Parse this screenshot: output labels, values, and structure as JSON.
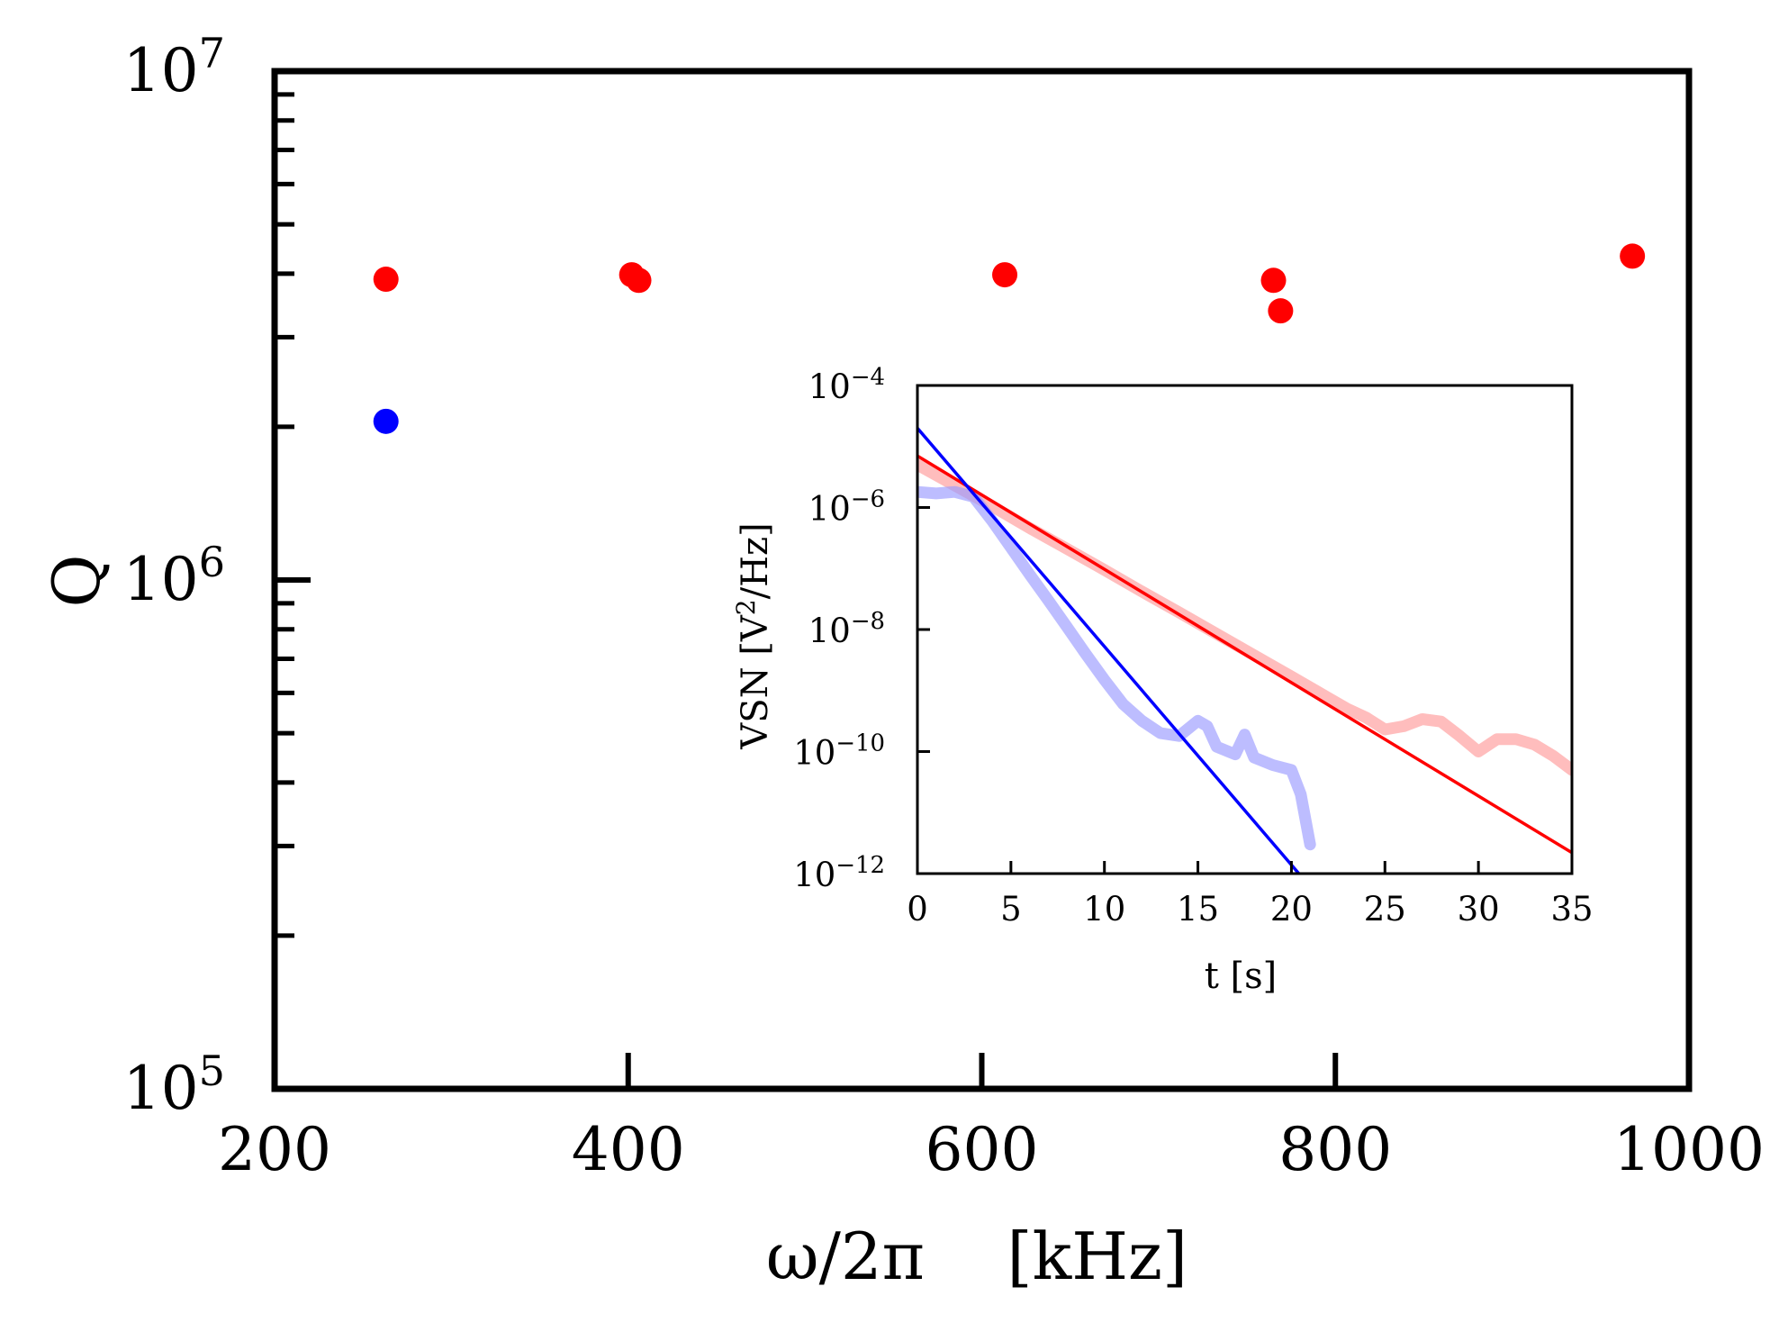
{
  "chart_data": [
    {
      "type": "scatter",
      "title": "",
      "xlabel": "ω/2π    [kHz]",
      "ylabel": "Q",
      "xlim": [
        200,
        1000
      ],
      "ylim": [
        100000,
        10000000
      ],
      "yscale": "log",
      "xticks": [
        200,
        400,
        600,
        800,
        1000
      ],
      "xtick_labels": [
        "200",
        "400",
        "600",
        "800",
        "1000"
      ],
      "ytick_labels": [
        {
          "value": 100000,
          "base": "10",
          "exp": "5"
        },
        {
          "value": 1000000,
          "base": "10",
          "exp": "6"
        },
        {
          "value": 10000000,
          "base": "10",
          "exp": "7"
        }
      ],
      "series": [
        {
          "name": "red",
          "color": "#ff0000",
          "points": [
            {
              "x": 263,
              "y": 3900000
            },
            {
              "x": 402,
              "y": 3980000
            },
            {
              "x": 406,
              "y": 3880000
            },
            {
              "x": 613,
              "y": 3980000
            },
            {
              "x": 765,
              "y": 3880000
            },
            {
              "x": 769,
              "y": 3380000
            },
            {
              "x": 968,
              "y": 4330000
            }
          ]
        },
        {
          "name": "blue",
          "color": "#0000ff",
          "points": [
            {
              "x": 263,
              "y": 2050000
            }
          ]
        }
      ]
    },
    {
      "type": "line",
      "title": "",
      "xlabel": "t [s]",
      "ylabel_prefix": "VSN [V",
      "ylabel_sup": "2",
      "ylabel_suffix": "/Hz]",
      "xlim": [
        0,
        35
      ],
      "ylim": [
        1e-12,
        0.0001
      ],
      "yscale": "log",
      "xticks": [
        0,
        5,
        10,
        15,
        20,
        25,
        30,
        35
      ],
      "xtick_labels": [
        "0",
        "5",
        "10",
        "15",
        "20",
        "25",
        "30",
        "35"
      ],
      "ytick_labels": [
        {
          "value": 0.0001,
          "base": "10",
          "exp": "−4"
        },
        {
          "value": 1e-06,
          "base": "10",
          "exp": "−6"
        },
        {
          "value": 1e-08,
          "base": "10",
          "exp": "−8"
        },
        {
          "value": 1e-10,
          "base": "10",
          "exp": "−10"
        },
        {
          "value": 1e-12,
          "base": "10",
          "exp": "−12"
        }
      ],
      "series": [
        {
          "name": "red-data",
          "color": "#ff9999",
          "opacity": 0.65,
          "x": [
            0,
            2,
            4,
            6,
            8,
            10,
            12,
            14,
            16,
            18,
            20,
            22,
            23,
            24,
            25,
            26,
            27,
            28,
            29,
            30,
            31,
            32,
            33,
            34,
            35
          ],
          "y": [
            5e-06,
            2.3e-06,
            1.05e-06,
            4.6e-07,
            2.1e-07,
            9.5e-08,
            4.2e-08,
            1.9e-08,
            8.5e-09,
            3.8e-09,
            1.7e-09,
            7.5e-10,
            5e-10,
            3.6e-10,
            2.3e-10,
            2.6e-10,
            3.4e-10,
            3.1e-10,
            1.8e-10,
            1e-10,
            1.6e-10,
            1.6e-10,
            1.3e-10,
            8.5e-11,
            5e-11
          ]
        },
        {
          "name": "blue-data",
          "color": "#9999ff",
          "opacity": 0.65,
          "x": [
            0,
            1,
            2,
            3,
            4,
            5,
            6,
            7,
            8,
            9,
            10,
            11,
            12,
            13,
            14,
            15,
            15.5,
            16,
            17,
            17.5,
            18,
            19,
            20,
            20.5,
            21
          ],
          "y": [
            1.8e-06,
            1.7e-06,
            1.8e-06,
            1.5e-06,
            6e-07,
            2.2e-07,
            8e-08,
            3e-08,
            1.1e-08,
            4e-09,
            1.5e-09,
            6e-10,
            3.2e-10,
            2e-10,
            1.8e-10,
            3.2e-10,
            2.6e-10,
            1.2e-10,
            9e-11,
            1.9e-10,
            8e-11,
            6e-11,
            5e-11,
            2e-11,
            3e-12
          ]
        },
        {
          "name": "red-fit",
          "color": "#ff0000",
          "x": [
            0,
            35
          ],
          "y": [
            7e-06,
            2.2e-12
          ]
        },
        {
          "name": "blue-fit",
          "color": "#0000ff",
          "x": [
            0,
            20.4
          ],
          "y": [
            2e-05,
            1e-12
          ]
        }
      ]
    }
  ]
}
